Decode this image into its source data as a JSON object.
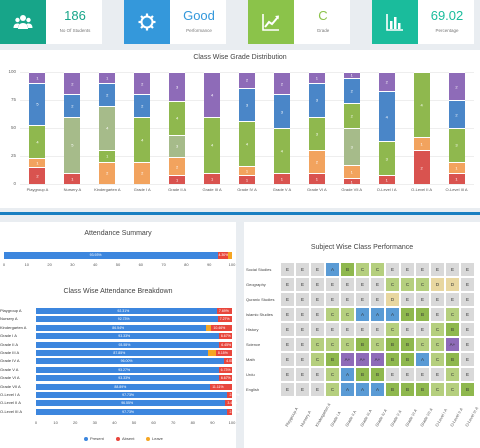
{
  "colors": {
    "teal": "#17a589",
    "blue": "#3498db",
    "green": "#8bc34a",
    "cyan": "#1abc9c",
    "purple": "#8e6bb8",
    "seg_blue": "#4a86c8",
    "seg_green": "#8fb84e",
    "seg_sage": "#a6bb8a",
    "seg_orange": "#f2a35e",
    "seg_red": "#d9534f",
    "present": "#3c86de",
    "absent": "#e8463c",
    "leave": "#f5a623"
  },
  "stats": [
    {
      "value": "186",
      "label": "No Of Students",
      "icon": "users-icon",
      "color": "#17a589"
    },
    {
      "value": "Good",
      "label": "Performance",
      "icon": "gear-icon",
      "color": "#3498db"
    },
    {
      "value": "C",
      "label": "Grade",
      "icon": "chart-trend-icon",
      "color": "#8bc34a"
    },
    {
      "value": "69.02",
      "label": "Percentage",
      "icon": "bar-chart-icon",
      "color": "#1abc9c"
    }
  ],
  "chart_data": [
    {
      "type": "bar",
      "title": "Class Wise Grade Distribution",
      "categories": [
        "Playgroup A",
        "Nursery A",
        "Kindergarten A",
        "Grade I A",
        "Grade II A",
        "Grade III A",
        "Grade IV A",
        "Grade V A",
        "Grade VI A",
        "Grade VII A",
        "O-Level I A",
        "O-Level II A",
        "O-Level III A"
      ],
      "ylim": [
        0,
        100
      ],
      "yticks": [
        "0",
        "25",
        "50",
        "75",
        "100"
      ],
      "stacks": [
        [
          {
            "v": 15,
            "c": "#d9534f",
            "t": "2"
          },
          {
            "v": 8,
            "c": "#f2a35e",
            "t": "1"
          },
          {
            "v": 30,
            "c": "#8fb84e",
            "t": "4"
          },
          {
            "v": 37,
            "c": "#4a86c8",
            "t": "5"
          },
          {
            "v": 10,
            "c": "#8e6bb8",
            "t": "1"
          }
        ],
        [
          {
            "v": 10,
            "c": "#d9534f",
            "t": "1"
          },
          {
            "v": 50,
            "c": "#a6bb8a",
            "t": "5"
          },
          {
            "v": 20,
            "c": "#4a86c8",
            "t": "2"
          },
          {
            "v": 20,
            "c": "#8e6bb8",
            "t": "2"
          }
        ],
        [
          {
            "v": 20,
            "c": "#f2a35e",
            "t": "2"
          },
          {
            "v": 10,
            "c": "#8fb84e",
            "t": "1"
          },
          {
            "v": 40,
            "c": "#a6bb8a",
            "t": "4"
          },
          {
            "v": 20,
            "c": "#4a86c8",
            "t": "2"
          },
          {
            "v": 10,
            "c": "#8e6bb8",
            "t": "1"
          }
        ],
        [
          {
            "v": 20,
            "c": "#f2a35e",
            "t": "2"
          },
          {
            "v": 40,
            "c": "#8fb84e",
            "t": "4"
          },
          {
            "v": 20,
            "c": "#4a86c8",
            "t": "2"
          },
          {
            "v": 20,
            "c": "#8e6bb8",
            "t": "2"
          }
        ],
        [
          {
            "v": 8,
            "c": "#d9534f",
            "t": "1"
          },
          {
            "v": 16,
            "c": "#f2a35e",
            "t": "2"
          },
          {
            "v": 20,
            "c": "#a6bb8a",
            "t": "3"
          },
          {
            "v": 30,
            "c": "#8fb84e",
            "t": "4"
          },
          {
            "v": 26,
            "c": "#8e6bb8",
            "t": "3"
          }
        ],
        [
          {
            "v": 10,
            "c": "#d9534f",
            "t": "1"
          },
          {
            "v": 50,
            "c": "#8fb84e",
            "t": "4"
          },
          {
            "v": 40,
            "c": "#8e6bb8",
            "t": "4"
          }
        ],
        [
          {
            "v": 8,
            "c": "#d9534f",
            "t": "1"
          },
          {
            "v": 8,
            "c": "#f2a35e",
            "t": "1"
          },
          {
            "v": 40,
            "c": "#8fb84e",
            "t": "4"
          },
          {
            "v": 30,
            "c": "#4a86c8",
            "t": "3"
          },
          {
            "v": 14,
            "c": "#8e6bb8",
            "t": "2"
          }
        ],
        [
          {
            "v": 10,
            "c": "#d9534f",
            "t": "1"
          },
          {
            "v": 40,
            "c": "#8fb84e",
            "t": "4"
          },
          {
            "v": 30,
            "c": "#4a86c8",
            "t": "3"
          },
          {
            "v": 20,
            "c": "#8e6bb8",
            "t": "2"
          }
        ],
        [
          {
            "v": 10,
            "c": "#d9534f",
            "t": "1"
          },
          {
            "v": 20,
            "c": "#f2a35e",
            "t": "2"
          },
          {
            "v": 30,
            "c": "#8fb84e",
            "t": "3"
          },
          {
            "v": 30,
            "c": "#4a86c8",
            "t": "3"
          },
          {
            "v": 10,
            "c": "#8e6bb8",
            "t": "1"
          }
        ],
        [
          {
            "v": 5,
            "c": "#d9534f",
            "t": "1"
          },
          {
            "v": 12,
            "c": "#f2a35e",
            "t": "1"
          },
          {
            "v": 33,
            "c": "#a6bb8a",
            "t": "3"
          },
          {
            "v": 22,
            "c": "#8fb84e",
            "t": "2"
          },
          {
            "v": 23,
            "c": "#4a86c8",
            "t": "2"
          },
          {
            "v": 5,
            "c": "#8e6bb8",
            "t": "1"
          }
        ],
        [
          {
            "v": 8,
            "c": "#d9534f",
            "t": "1"
          },
          {
            "v": 30,
            "c": "#8fb84e",
            "t": "3"
          },
          {
            "v": 45,
            "c": "#4a86c8",
            "t": "4"
          },
          {
            "v": 17,
            "c": "#8e6bb8",
            "t": "2"
          }
        ],
        [
          {
            "v": 30,
            "c": "#d9534f",
            "t": "2"
          },
          {
            "v": 12,
            "c": "#f2a35e",
            "t": "1"
          },
          {
            "v": 58,
            "c": "#8fb84e",
            "t": "4"
          }
        ],
        [
          {
            "v": 10,
            "c": "#d9534f",
            "t": "1"
          },
          {
            "v": 10,
            "c": "#f2a35e",
            "t": "1"
          },
          {
            "v": 30,
            "c": "#8fb84e",
            "t": "3"
          },
          {
            "v": 25,
            "c": "#4a86c8",
            "t": "2"
          },
          {
            "v": 25,
            "c": "#8e6bb8",
            "t": "2"
          }
        ]
      ]
    },
    {
      "type": "bar",
      "title": "Attendance Summary",
      "orientation": "horizontal",
      "segments": [
        {
          "name": "Present",
          "value": 93.93,
          "label": "93.93%",
          "color": "#3c86de"
        },
        {
          "name": "Absent",
          "value": 4.3,
          "label": "4.30%",
          "color": "#e8463c"
        },
        {
          "name": "Leave",
          "value": 1.77,
          "label": "",
          "color": "#f5a623"
        }
      ],
      "xticks": [
        "0",
        "10",
        "20",
        "30",
        "40",
        "50",
        "60",
        "70",
        "80",
        "90",
        "100"
      ]
    },
    {
      "type": "bar",
      "title": "Class Wise Attendance Breakdown",
      "orientation": "horizontal",
      "categories": [
        "Playgroup A",
        "Nursery A",
        "Kindergarten A",
        "Grade I A",
        "Grade II A",
        "Grade III A",
        "Grade IV A",
        "Grade V A",
        "Grade VI A",
        "Grade VII A",
        "O-Level I A",
        "O-Level II A",
        "O-Level III A"
      ],
      "present": [
        92.3,
        92.7,
        86.5,
        93.3,
        93.5,
        87.8,
        96.0,
        93.2,
        93.3,
        88.9,
        97.7,
        96.6,
        97.7
      ],
      "absent": [
        7.7,
        7.3,
        10.5,
        6.7,
        6.5,
        8.2,
        4.0,
        6.8,
        6.7,
        11.1,
        2.3,
        3.4,
        2.3
      ],
      "leave": [
        0,
        0,
        3.0,
        0,
        0,
        4.0,
        0,
        0,
        0,
        0,
        0,
        0,
        0
      ],
      "present_labels": [
        "92.31%",
        "92.73%",
        "86.54%",
        "93.33%",
        "93.55%",
        "87.85%",
        "96.00%",
        "93.27%",
        "93.33%",
        "88.89%",
        "97.73%",
        "96.55%",
        "97.73%"
      ],
      "absent_labels": [
        "7.69%",
        "7.27%",
        "10.46%",
        "6.67%",
        "6.45%",
        "8.15%",
        "4.00%",
        "6.73%",
        "6.67%",
        "11.11%",
        "2.27%",
        "3.45%",
        "2.27%"
      ],
      "xticks": [
        "0",
        "10",
        "20",
        "30",
        "40",
        "50",
        "60",
        "70",
        "80",
        "90",
        "100"
      ],
      "legend": [
        "Present",
        "Absent",
        "Leave"
      ]
    },
    {
      "type": "heatmap",
      "title": "Subject Wise Class Performance",
      "rows": [
        "Social Studies",
        "Geography",
        "Quranic Studies",
        "Islamic Studies",
        "History",
        "Science",
        "Math",
        "Urdu",
        "English"
      ],
      "cols": [
        "Playgroup A",
        "Nursery A",
        "Kindergarten A",
        "Grade I A",
        "Grade II A",
        "Grade III A",
        "Grade IV A",
        "Grade V A",
        "Grade VI A",
        "Grade VII A",
        "O-Level I A",
        "O-Level II A",
        "O-Level III A"
      ],
      "grid": [
        [
          "E",
          "E",
          "E",
          "A",
          "B",
          "C",
          "C",
          "E",
          "E",
          "E",
          "E",
          "E",
          "E"
        ],
        [
          "E",
          "E",
          "E",
          "E",
          "E",
          "E",
          "E",
          "C",
          "C",
          "C",
          "D",
          "D",
          "E"
        ],
        [
          "E",
          "E",
          "E",
          "E",
          "E",
          "E",
          "E",
          "D",
          "E",
          "E",
          "E",
          "E",
          "E"
        ],
        [
          "E",
          "E",
          "E",
          "C",
          "C",
          "A",
          "A",
          "A",
          "B",
          "B",
          "E",
          "C",
          "E"
        ],
        [
          "E",
          "E",
          "E",
          "E",
          "E",
          "E",
          "E",
          "C",
          "E",
          "E",
          "C",
          "B",
          "E"
        ],
        [
          "E",
          "E",
          "C",
          "C",
          "C",
          "B",
          "C",
          "B",
          "B",
          "C",
          "C",
          "A+",
          "E"
        ],
        [
          "E",
          "E",
          "C",
          "B",
          "A+",
          "A+",
          "A+",
          "B",
          "B",
          "A",
          "C",
          "B",
          "E"
        ],
        [
          "E",
          "E",
          "E",
          "C",
          "A",
          "B",
          "B",
          "E",
          "E",
          "E",
          "E",
          "C",
          "E"
        ],
        [
          "E",
          "E",
          "E",
          "C",
          "A",
          "A",
          "A",
          "B",
          "B",
          "B",
          "C",
          "C",
          "B"
        ]
      ],
      "grade_colors": {
        "E": "#d9d9d9",
        "D": "#e8d7a0",
        "C": "#b5cf7e",
        "B": "#8fb84e",
        "A": "#5a9bd5",
        "A+": "#8e6bb8"
      }
    }
  ]
}
